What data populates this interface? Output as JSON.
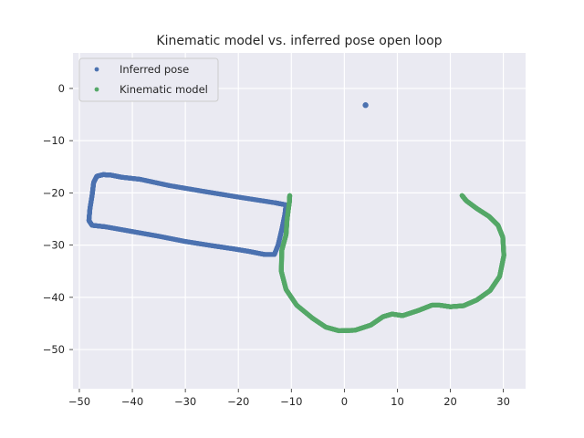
{
  "chart_data": {
    "type": "scatter",
    "title": "Kinematic model vs. inferred pose open loop",
    "xlabel": "",
    "ylabel": "",
    "xlim": [
      -51.2,
      34.2
    ],
    "ylim": [
      -57.5,
      6.8
    ],
    "xticks": [
      -50,
      -40,
      -30,
      -20,
      -10,
      0,
      10,
      20,
      30
    ],
    "yticks": [
      0,
      -10,
      -20,
      -30,
      -40,
      -50
    ],
    "grid": true,
    "legend_position": "top-left",
    "background": "#EAEAF2",
    "series": [
      {
        "name": "Inferred pose",
        "color": "#4C72B0",
        "path": [
          [
            -11.0,
            -22.3
          ],
          [
            -13.0,
            -21.9
          ],
          [
            -20.0,
            -20.8
          ],
          [
            -26.0,
            -19.8
          ],
          [
            -33.0,
            -18.6
          ],
          [
            -38.5,
            -17.4
          ],
          [
            -42.0,
            -17.0
          ],
          [
            -44.0,
            -16.6
          ],
          [
            -45.5,
            -16.5
          ],
          [
            -46.7,
            -16.8
          ],
          [
            -47.3,
            -18.0
          ],
          [
            -47.6,
            -20.5
          ],
          [
            -48.0,
            -23.0
          ],
          [
            -48.2,
            -25.3
          ],
          [
            -47.6,
            -26.2
          ],
          [
            -45.0,
            -26.5
          ],
          [
            -40.0,
            -27.4
          ],
          [
            -35.0,
            -28.3
          ],
          [
            -30.0,
            -29.3
          ],
          [
            -25.0,
            -30.1
          ],
          [
            -21.0,
            -30.7
          ],
          [
            -18.0,
            -31.2
          ],
          [
            -15.0,
            -31.8
          ],
          [
            -13.2,
            -31.8
          ],
          [
            -12.5,
            -30.0
          ],
          [
            -11.8,
            -27.0
          ],
          [
            -11.2,
            -24.0
          ],
          [
            -11.0,
            -22.3
          ]
        ],
        "outlier": [
          4.0,
          -3.2
        ]
      },
      {
        "name": "Kinematic model",
        "color": "#55A868",
        "path": [
          [
            -10.3,
            -20.5
          ],
          [
            -10.4,
            -22.0
          ],
          [
            -10.8,
            -25.0
          ],
          [
            -11.0,
            -28.0
          ],
          [
            -11.8,
            -31.0
          ],
          [
            -11.9,
            -35.0
          ],
          [
            -11.0,
            -38.5
          ],
          [
            -9.0,
            -41.5
          ],
          [
            -6.0,
            -44.0
          ],
          [
            -3.5,
            -45.7
          ],
          [
            -1.0,
            -46.4
          ],
          [
            2.0,
            -46.3
          ],
          [
            5.0,
            -45.3
          ],
          [
            7.3,
            -43.7
          ],
          [
            9.0,
            -43.2
          ],
          [
            11.0,
            -43.5
          ],
          [
            14.0,
            -42.5
          ],
          [
            16.5,
            -41.5
          ],
          [
            18.0,
            -41.5
          ],
          [
            20.0,
            -41.8
          ],
          [
            22.5,
            -41.6
          ],
          [
            25.0,
            -40.5
          ],
          [
            27.5,
            -38.7
          ],
          [
            29.3,
            -36.0
          ],
          [
            30.1,
            -32.0
          ],
          [
            29.9,
            -28.5
          ],
          [
            29.0,
            -26.2
          ],
          [
            27.3,
            -24.5
          ],
          [
            25.0,
            -23.0
          ],
          [
            23.0,
            -21.5
          ],
          [
            22.2,
            -20.5
          ]
        ]
      }
    ]
  }
}
